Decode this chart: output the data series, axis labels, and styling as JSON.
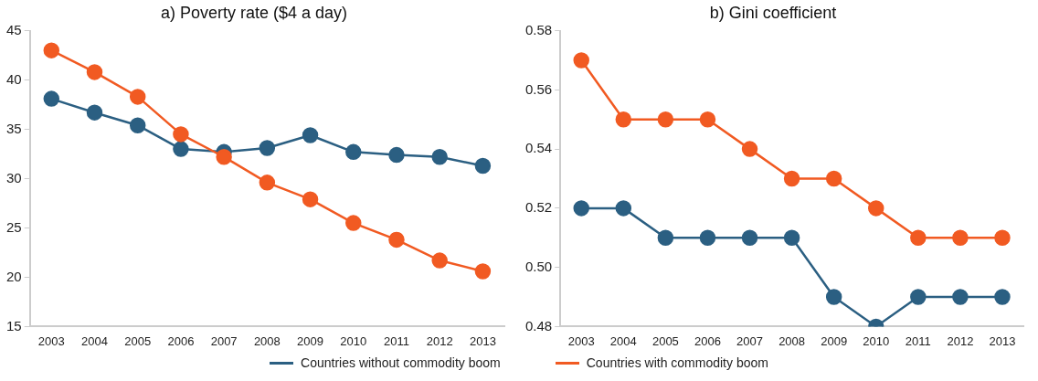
{
  "chart_data": [
    {
      "type": "line",
      "title": "a) Poverty rate ($4 a day)",
      "categories": [
        "2003",
        "2004",
        "2005",
        "2006",
        "2007",
        "2008",
        "2009",
        "2010",
        "2011",
        "2012",
        "2013"
      ],
      "series": [
        {
          "name": "Countries without commodity boom",
          "color": "#2b5f82",
          "values": [
            38.1,
            36.7,
            35.4,
            33.0,
            32.7,
            33.1,
            34.4,
            32.7,
            32.4,
            32.2,
            31.3
          ]
        },
        {
          "name": "Countries with commodity boom",
          "color": "#f15a22",
          "values": [
            43.0,
            40.8,
            38.3,
            34.5,
            32.2,
            29.6,
            27.9,
            25.5,
            23.8,
            21.7,
            20.6
          ]
        }
      ],
      "ylim": [
        15,
        45
      ],
      "yticks": [
        15,
        20,
        25,
        30,
        35,
        40,
        45
      ],
      "grid": false,
      "legend": "bottom",
      "marker": "circle",
      "line_style": "solid"
    },
    {
      "type": "line",
      "title": "b) Gini coefficient",
      "categories": [
        "2003",
        "2004",
        "2005",
        "2006",
        "2007",
        "2008",
        "2009",
        "2010",
        "2011",
        "2012",
        "2013"
      ],
      "series": [
        {
          "color": "#2b5f82",
          "values": [
            0.52,
            0.52,
            0.51,
            0.51,
            0.51,
            0.51,
            0.49,
            0.48,
            0.49,
            0.49,
            0.49
          ]
        },
        {
          "color": "#f15a22",
          "values": [
            0.57,
            0.55,
            0.55,
            0.55,
            0.54,
            0.53,
            0.53,
            0.52,
            0.51,
            0.51,
            0.51
          ]
        }
      ],
      "ylim": [
        0.48,
        0.58
      ],
      "yticks": [
        {
          "value": 0.48,
          "label": "0.48"
        },
        {
          "value": 0.5,
          "label": "0.50"
        },
        {
          "value": 0.52,
          "label": "0.52"
        },
        {
          "value": 0.54,
          "label": "0.54"
        },
        {
          "value": 0.56,
          "label": "0.56"
        },
        {
          "value": 0.58,
          "label": "0.58"
        }
      ],
      "grid": false,
      "marker": "circle",
      "line_style": "solid"
    }
  ]
}
